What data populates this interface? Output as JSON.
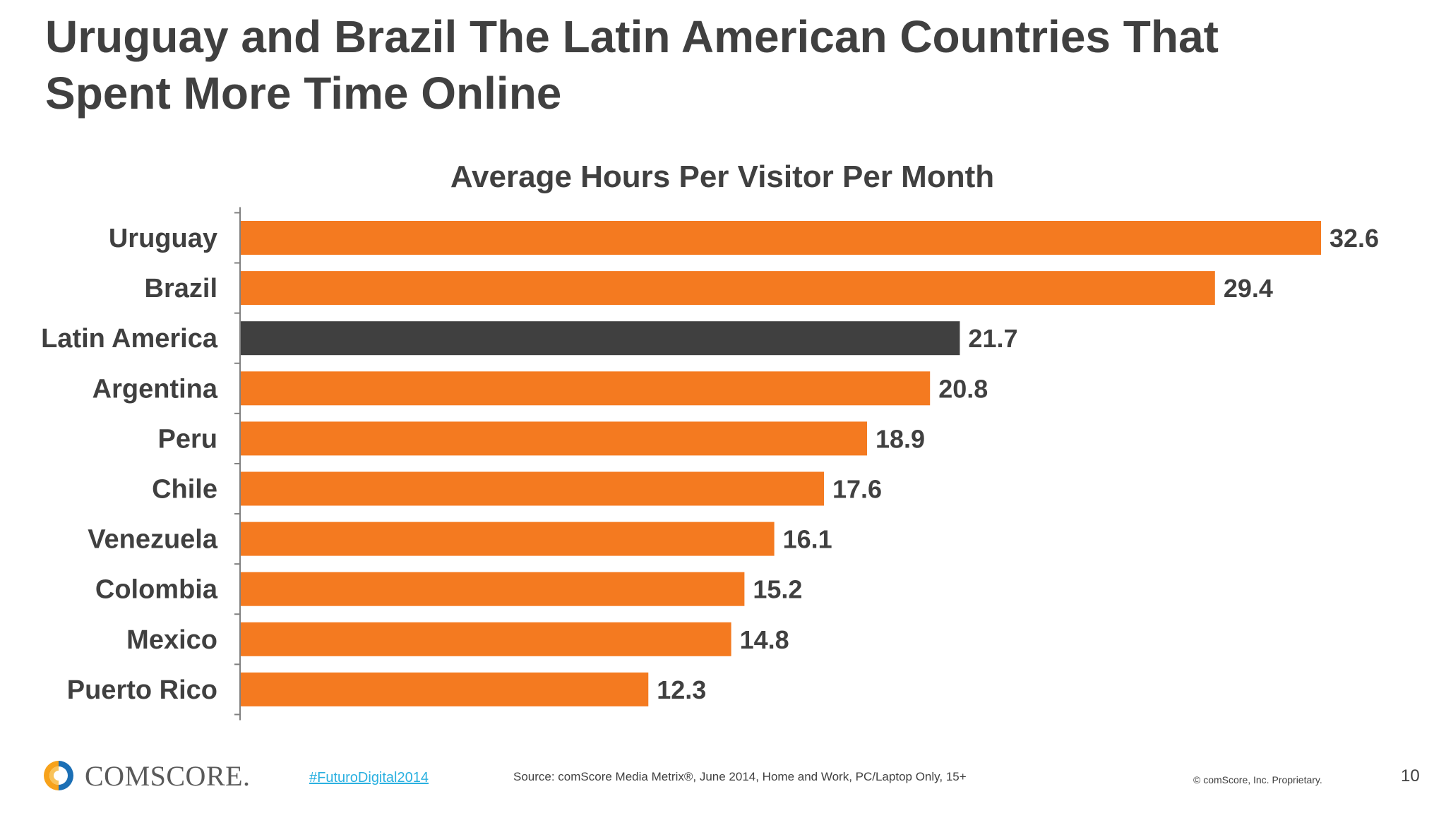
{
  "slide": {
    "title_line1": "Uruguay and Brazil The Latin American Countries That",
    "title_line2": "Spent More Time Online",
    "page_number": "10"
  },
  "footer": {
    "logo_text": "COMSCORE.",
    "hashtag": "#FuturoDigital2014",
    "source": "Source: comScore Media Metrix®, June 2014, Home and Work, PC/Laptop Only, 15+",
    "copyright": "© comScore, Inc. Proprietary."
  },
  "colors": {
    "bar": "#f47a20",
    "highlight_bar": "#404040",
    "logo_orange": "#f7a21b",
    "logo_blue": "#1b6fb5",
    "hashtag": "#2ab0e0"
  },
  "chart_data": {
    "type": "bar",
    "orientation": "horizontal",
    "title": "Average Hours Per Visitor Per Month",
    "categories": [
      "Uruguay",
      "Brazil",
      "Latin America",
      "Argentina",
      "Peru",
      "Chile",
      "Venezuela",
      "Colombia",
      "Mexico",
      "Puerto Rico"
    ],
    "values": [
      32.6,
      29.4,
      21.7,
      20.8,
      18.9,
      17.6,
      16.1,
      15.2,
      14.8,
      12.3
    ],
    "value_labels": [
      "32.6",
      "29.4",
      "21.7",
      "20.8",
      "18.9",
      "17.6",
      "16.1",
      "15.2",
      "14.8",
      "12.3"
    ],
    "highlight_category": "Latin America",
    "xlim": [
      0,
      32.6
    ],
    "grid": false,
    "legend": "none"
  }
}
